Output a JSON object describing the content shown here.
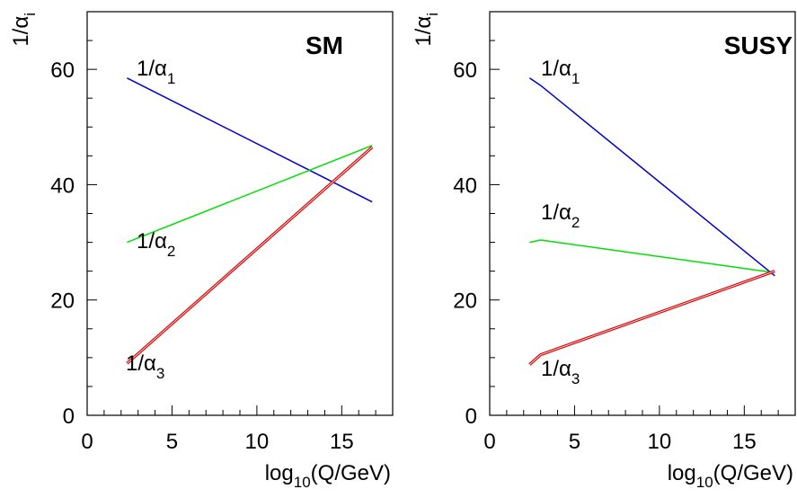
{
  "chart_data": [
    {
      "type": "line",
      "panel_label": "SM",
      "xlabel": {
        "prefix": "log",
        "sub": "10",
        "suffix": "(Q/GeV)"
      },
      "ylabel": {
        "prefix": "1/α",
        "sub": "i"
      },
      "xlim": [
        0,
        18
      ],
      "ylim": [
        0,
        70
      ],
      "xticks": [
        0,
        5,
        10,
        15
      ],
      "yticks": [
        0,
        20,
        40,
        60
      ],
      "grid": false,
      "legend": "none",
      "series": [
        {
          "id": "alpha1",
          "label": {
            "prefix": "1/α",
            "sub": "1"
          },
          "color": "#0000cc",
          "x": [
            2.35,
            16.8
          ],
          "y": [
            58.5,
            37.0
          ]
        },
        {
          "id": "alpha2",
          "label": {
            "prefix": "1/α",
            "sub": "2"
          },
          "color": "#00e000",
          "x": [
            2.35,
            16.8
          ],
          "y": [
            30.0,
            46.8
          ]
        },
        {
          "id": "alpha3",
          "label": {
            "prefix": "1/α",
            "sub": "3"
          },
          "color": "#dd0000",
          "x": [
            2.35,
            16.8
          ],
          "y": [
            9.0,
            46.5
          ]
        }
      ]
    },
    {
      "type": "line",
      "panel_label": "SUSY",
      "xlabel": {
        "prefix": "log",
        "sub": "10",
        "suffix": "(Q/GeV)"
      },
      "ylabel": {
        "prefix": "1/α",
        "sub": "i"
      },
      "xlim": [
        0,
        18
      ],
      "ylim": [
        0,
        70
      ],
      "xticks": [
        0,
        5,
        10,
        15
      ],
      "yticks": [
        0,
        20,
        40,
        60
      ],
      "grid": false,
      "legend": "none",
      "series": [
        {
          "id": "alpha1",
          "label": {
            "prefix": "1/α",
            "sub": "1"
          },
          "color": "#0000cc",
          "x": [
            2.35,
            3.0,
            16.8
          ],
          "y": [
            58.5,
            57.2,
            24.2
          ]
        },
        {
          "id": "alpha2",
          "label": {
            "prefix": "1/α",
            "sub": "2"
          },
          "color": "#00e000",
          "x": [
            2.35,
            3.0,
            16.6
          ],
          "y": [
            30.0,
            30.4,
            24.8
          ]
        },
        {
          "id": "alpha3",
          "label": {
            "prefix": "1/α",
            "sub": "3"
          },
          "color": "#dd0000",
          "x": [
            2.35,
            3.0,
            16.8
          ],
          "y": [
            8.8,
            10.5,
            25.0
          ]
        }
      ]
    }
  ]
}
